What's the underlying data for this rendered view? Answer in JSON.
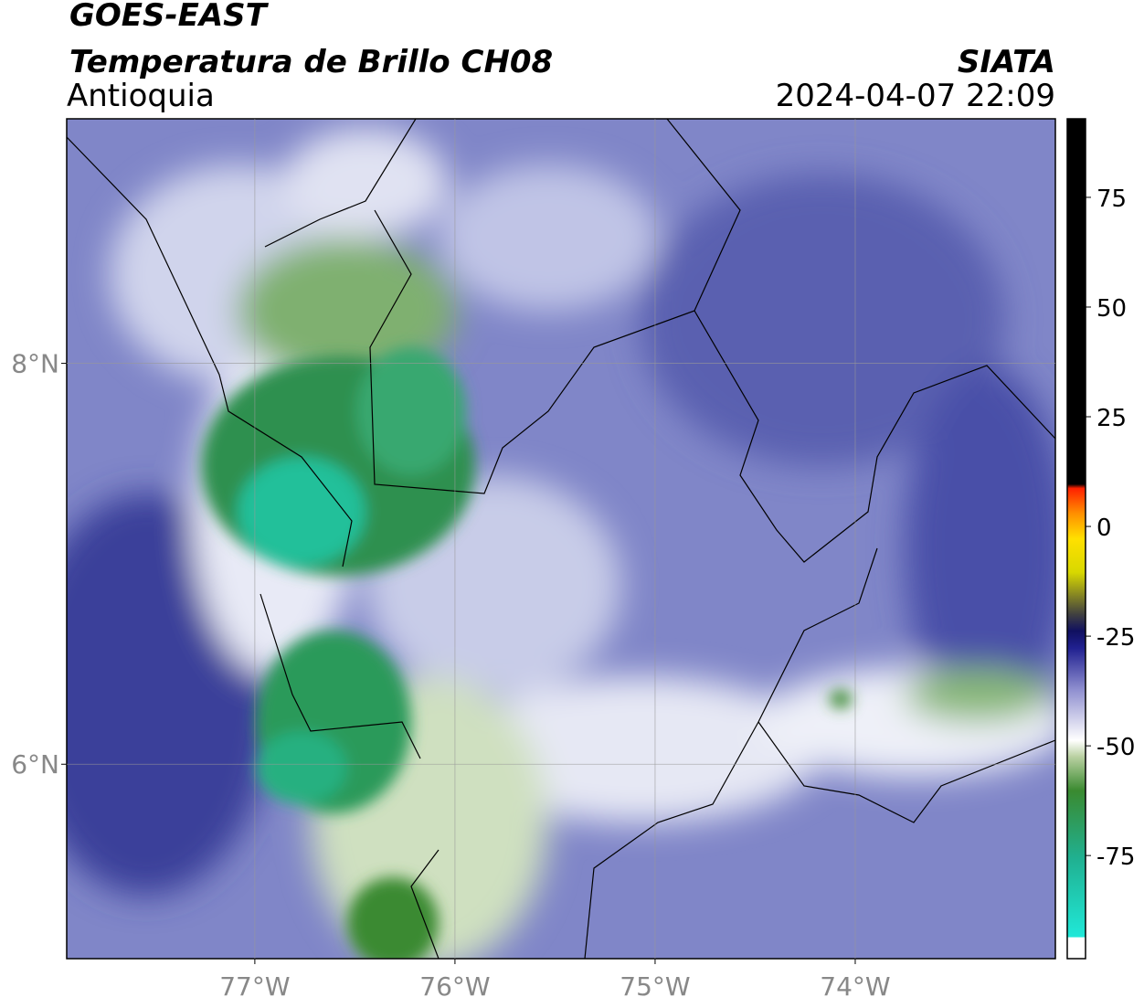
{
  "header": {
    "satellite": "GOES-EAST",
    "product": "Temperatura de Brillo CH08",
    "region": "Antioquia",
    "agency": "SIATA",
    "datetime": "2024-04-07 22:09"
  },
  "map": {
    "xlim": [
      -77.94,
      -73.0
    ],
    "ylim": [
      5.03,
      9.22
    ],
    "xticks": [
      {
        "value": -77,
        "label": "77°W"
      },
      {
        "value": -76,
        "label": "76°W"
      },
      {
        "value": -75,
        "label": "75°W"
      },
      {
        "value": -74,
        "label": "74°W"
      }
    ],
    "yticks": [
      {
        "value": 8,
        "label": "8°N"
      },
      {
        "value": 6,
        "label": "6°N"
      }
    ],
    "grid": true
  },
  "colorbar": {
    "lim": [
      -98.5,
      92.9
    ],
    "ticks": [
      75,
      50,
      25,
      0,
      -25,
      -50,
      -75
    ]
  }
}
